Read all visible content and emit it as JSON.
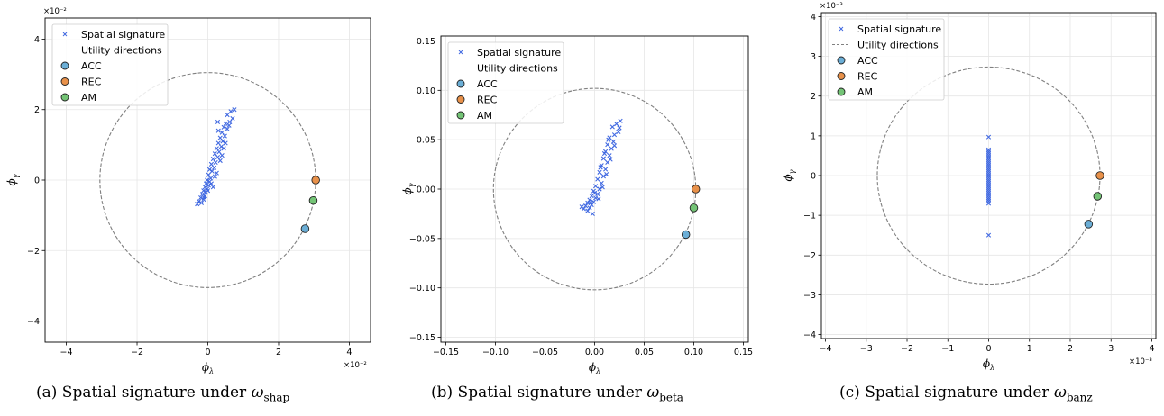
{
  "figure": {
    "panels": [
      {
        "caption_prefix": "(a) Spatial signature under ",
        "caption_omega": "ω",
        "caption_sub": "shap"
      },
      {
        "caption_prefix": "(b) Spatial signature under ",
        "caption_omega": "ω",
        "caption_sub": "beta"
      },
      {
        "caption_prefix": "(c) Spatial signature under ",
        "caption_omega": "ω",
        "caption_sub": "banz"
      }
    ]
  },
  "colors": {
    "scatter": "#4169e1",
    "circle": "#808080",
    "acc": "#6baed6",
    "rec": "#e8914a",
    "am": "#74c476",
    "grid": "#e6e6e6"
  },
  "chart_data": [
    {
      "type": "scatter",
      "title": "",
      "xlabel": "ϕλ",
      "ylabel": "ϕγ",
      "x_scale_label": "×10⁻²",
      "y_scale_label": "×10⁻²",
      "xlim": [
        -4.6,
        4.6
      ],
      "ylim": [
        -4.6,
        4.6
      ],
      "xticks": [
        -4,
        -2,
        0,
        2,
        4
      ],
      "yticks": [
        -4,
        -2,
        0,
        2,
        4
      ],
      "xtick_labels": [
        "−4",
        "−2",
        "0",
        "2",
        "4"
      ],
      "ytick_labels": [
        "−4",
        "−2",
        "0",
        "2",
        "4"
      ],
      "grid": true,
      "legend_position": "top-left",
      "legend": [
        "Spatial signature",
        "Utility directions",
        "ACC",
        "REC",
        "AM"
      ],
      "circle_radius": 3.05,
      "utility_points": [
        {
          "name": "ACC",
          "x": 2.75,
          "y": -1.38
        },
        {
          "name": "REC",
          "x": 3.05,
          "y": 0.0
        },
        {
          "name": "AM",
          "x": 2.98,
          "y": -0.58
        }
      ],
      "points": [
        [
          0.75,
          2.0
        ],
        [
          0.65,
          1.95
        ],
        [
          0.55,
          1.85
        ],
        [
          0.7,
          1.75
        ],
        [
          0.62,
          1.65
        ],
        [
          0.5,
          1.6
        ],
        [
          0.28,
          1.65
        ],
        [
          0.45,
          1.5
        ],
        [
          0.55,
          1.45
        ],
        [
          0.4,
          1.35
        ],
        [
          0.48,
          1.25
        ],
        [
          0.35,
          1.2
        ],
        [
          0.42,
          1.1
        ],
        [
          0.3,
          1.05
        ],
        [
          0.38,
          0.95
        ],
        [
          0.25,
          0.9
        ],
        [
          0.32,
          0.8
        ],
        [
          0.2,
          0.75
        ],
        [
          0.28,
          0.65
        ],
        [
          0.15,
          0.6
        ],
        [
          0.22,
          0.5
        ],
        [
          0.1,
          0.45
        ],
        [
          0.18,
          0.35
        ],
        [
          0.05,
          0.3
        ],
        [
          0.12,
          0.25
        ],
        [
          0.02,
          0.15
        ],
        [
          0.08,
          0.05
        ],
        [
          -0.02,
          0.0
        ],
        [
          0.05,
          -0.05
        ],
        [
          -0.05,
          -0.1
        ],
        [
          0.02,
          -0.15
        ],
        [
          -0.08,
          -0.2
        ],
        [
          -0.02,
          -0.25
        ],
        [
          -0.12,
          -0.3
        ],
        [
          -0.05,
          -0.35
        ],
        [
          -0.15,
          -0.4
        ],
        [
          -0.08,
          -0.45
        ],
        [
          -0.2,
          -0.5
        ],
        [
          -0.12,
          -0.55
        ],
        [
          -0.25,
          -0.6
        ],
        [
          -0.3,
          -0.68
        ],
        [
          -0.18,
          -0.65
        ],
        [
          0.1,
          -0.1
        ],
        [
          0.15,
          -0.2
        ],
        [
          0.0,
          -0.3
        ],
        [
          0.2,
          0.1
        ],
        [
          0.25,
          0.2
        ],
        [
          -0.1,
          -0.5
        ],
        [
          0.35,
          0.55
        ],
        [
          0.4,
          0.7
        ],
        [
          0.45,
          0.9
        ],
        [
          0.5,
          1.05
        ],
        [
          0.3,
          1.4
        ],
        [
          0.6,
          1.55
        ]
      ]
    },
    {
      "type": "scatter",
      "title": "",
      "xlabel": "ϕλ",
      "ylabel": "ϕγ",
      "x_scale_label": "",
      "y_scale_label": "",
      "xlim": [
        -0.155,
        0.155
      ],
      "ylim": [
        -0.155,
        0.155
      ],
      "xticks": [
        -0.15,
        -0.1,
        -0.05,
        0.0,
        0.05,
        0.1,
        0.15
      ],
      "yticks": [
        -0.15,
        -0.1,
        -0.05,
        0.0,
        0.05,
        0.1,
        0.15
      ],
      "xtick_labels": [
        "−0.15",
        "−0.10",
        "−0.05",
        "0.00",
        "0.05",
        "0.10",
        "0.15"
      ],
      "ytick_labels": [
        "−0.15",
        "−0.10",
        "−0.05",
        "0.00",
        "0.05",
        "0.10",
        "0.15"
      ],
      "grid": true,
      "legend_position": "top-left",
      "legend": [
        "Spatial signature",
        "Utility directions",
        "ACC",
        "REC",
        "AM"
      ],
      "circle_radius": 0.102,
      "utility_points": [
        {
          "name": "ACC",
          "x": 0.092,
          "y": -0.046
        },
        {
          "name": "REC",
          "x": 0.102,
          "y": 0.0
        },
        {
          "name": "AM",
          "x": 0.1,
          "y": -0.019
        }
      ],
      "points": [
        [
          0.026,
          0.069
        ],
        [
          0.022,
          0.066
        ],
        [
          0.018,
          0.063
        ],
        [
          0.024,
          0.058
        ],
        [
          0.02,
          0.055
        ],
        [
          0.015,
          0.052
        ],
        [
          0.019,
          0.048
        ],
        [
          0.013,
          0.045
        ],
        [
          0.017,
          0.041
        ],
        [
          0.011,
          0.038
        ],
        [
          0.015,
          0.034
        ],
        [
          0.009,
          0.031
        ],
        [
          0.013,
          0.027
        ],
        [
          0.007,
          0.024
        ],
        [
          0.011,
          0.02
        ],
        [
          0.005,
          0.017
        ],
        [
          0.009,
          0.013
        ],
        [
          0.003,
          0.01
        ],
        [
          0.007,
          0.006
        ],
        [
          0.001,
          0.003
        ],
        [
          0.005,
          0.0
        ],
        [
          -0.001,
          -0.002
        ],
        [
          0.003,
          -0.005
        ],
        [
          -0.003,
          -0.007
        ],
        [
          0.001,
          -0.009
        ],
        [
          -0.005,
          -0.011
        ],
        [
          -0.001,
          -0.013
        ],
        [
          -0.007,
          -0.014
        ],
        [
          -0.003,
          -0.016
        ],
        [
          -0.009,
          -0.017
        ],
        [
          -0.005,
          -0.019
        ],
        [
          -0.011,
          -0.02
        ],
        [
          -0.007,
          -0.022
        ],
        [
          -0.013,
          -0.018
        ],
        [
          -0.002,
          -0.025
        ],
        [
          0.004,
          -0.01
        ],
        [
          0.008,
          0.002
        ],
        [
          0.012,
          0.015
        ],
        [
          0.016,
          0.03
        ],
        [
          0.02,
          0.044
        ],
        [
          0.014,
          0.05
        ],
        [
          0.01,
          0.036
        ],
        [
          0.006,
          0.022
        ],
        [
          0.0,
          -0.004
        ],
        [
          -0.004,
          -0.014
        ],
        [
          0.025,
          0.062
        ]
      ]
    },
    {
      "type": "scatter",
      "title": "",
      "xlabel": "ϕλ",
      "ylabel": "ϕγ",
      "x_scale_label": "×10⁻³",
      "y_scale_label": "×10⁻³",
      "xlim": [
        -4.1,
        4.1
      ],
      "ylim": [
        -4.1,
        4.1
      ],
      "xticks": [
        -4,
        -3,
        -2,
        -1,
        0,
        1,
        2,
        3,
        4
      ],
      "yticks": [
        -4,
        -3,
        -2,
        -1,
        0,
        1,
        2,
        3,
        4
      ],
      "xtick_labels": [
        "−4",
        "−3",
        "−2",
        "−1",
        "0",
        "1",
        "2",
        "3",
        "4"
      ],
      "ytick_labels": [
        "−4",
        "−3",
        "−2",
        "−1",
        "0",
        "1",
        "2",
        "3",
        "4"
      ],
      "grid": true,
      "legend_position": "top-left",
      "legend": [
        "Spatial signature",
        "Utility directions",
        "ACC",
        "REC",
        "AM"
      ],
      "circle_radius": 2.73,
      "utility_points": [
        {
          "name": "ACC",
          "x": 2.45,
          "y": -1.22
        },
        {
          "name": "REC",
          "x": 2.73,
          "y": 0.0
        },
        {
          "name": "AM",
          "x": 2.67,
          "y": -0.52
        }
      ],
      "points": [
        [
          0,
          0.97
        ],
        [
          0,
          0.65
        ],
        [
          0,
          0.6
        ],
        [
          0,
          0.55
        ],
        [
          0,
          0.5
        ],
        [
          0,
          0.45
        ],
        [
          0,
          0.4
        ],
        [
          0,
          0.35
        ],
        [
          0,
          0.3
        ],
        [
          0,
          0.25
        ],
        [
          0,
          0.2
        ],
        [
          0,
          0.15
        ],
        [
          0,
          0.1
        ],
        [
          0,
          0.05
        ],
        [
          0,
          0.0
        ],
        [
          0,
          -0.05
        ],
        [
          0,
          -0.1
        ],
        [
          0,
          -0.15
        ],
        [
          0,
          -0.2
        ],
        [
          0,
          -0.25
        ],
        [
          0,
          -0.3
        ],
        [
          0,
          -0.35
        ],
        [
          0,
          -0.4
        ],
        [
          0,
          -0.45
        ],
        [
          0,
          -0.5
        ],
        [
          0,
          -0.55
        ],
        [
          0,
          -0.6
        ],
        [
          0,
          -0.65
        ],
        [
          0,
          -0.7
        ],
        [
          0,
          -1.5
        ]
      ]
    }
  ]
}
